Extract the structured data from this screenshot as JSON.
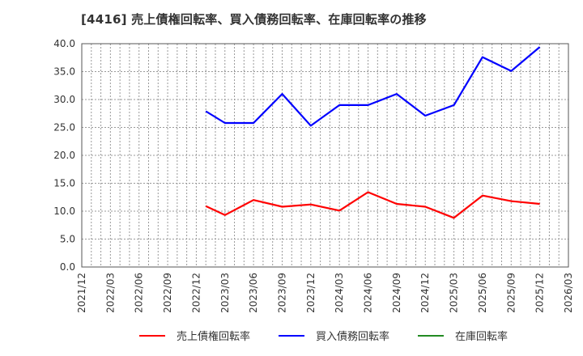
{
  "title": "[4416]  売上債権回転率、買入債務回転率、在庫回転率の推移",
  "chart_data": {
    "type": "line",
    "title": "[4416]  売上債権回転率、買入債務回転率、在庫回転率の推移",
    "xlabel": "",
    "ylabel": "",
    "ylim": [
      0,
      40
    ],
    "yticks": [
      "0.0",
      "5.0",
      "10.0",
      "15.0",
      "20.0",
      "25.0",
      "30.0",
      "35.0",
      "40.0"
    ],
    "xticks": [
      "2021/12",
      "2022/03",
      "2022/06",
      "2022/09",
      "2022/12",
      "2023/03",
      "2023/06",
      "2023/09",
      "2023/12",
      "2024/03",
      "2024/06",
      "2024/09",
      "2024/12",
      "2025/03",
      "2025/06",
      "2025/09",
      "2025/12",
      "2026/03"
    ],
    "grid": true,
    "legend_position": "bottom",
    "x": [
      "2023/01",
      "2023/03",
      "2023/06",
      "2023/09",
      "2023/12",
      "2024/03",
      "2024/06",
      "2024/09",
      "2024/12",
      "2025/03",
      "2025/06",
      "2025/09",
      "2025/12"
    ],
    "x_month_offsets": [
      13,
      15,
      18,
      21,
      24,
      27,
      30,
      33,
      36,
      39,
      42,
      45,
      48
    ],
    "series": [
      {
        "name": "売上債権回転率",
        "color": "#ff0000",
        "values": [
          10.9,
          9.3,
          12.0,
          10.8,
          11.2,
          10.1,
          13.4,
          11.3,
          10.8,
          8.8,
          12.8,
          11.8,
          11.3
        ]
      },
      {
        "name": "買入債務回転率",
        "color": "#0000ff",
        "values": [
          27.9,
          25.8,
          25.8,
          31.0,
          25.3,
          29.0,
          29.0,
          31.0,
          27.1,
          29.0,
          37.6,
          35.1,
          39.4
        ]
      },
      {
        "name": "在庫回転率",
        "color": "#228b22",
        "values": []
      }
    ]
  },
  "legend": [
    {
      "label": "売上債権回転率",
      "color": "#ff0000"
    },
    {
      "label": "買入債務回転率",
      "color": "#0000ff"
    },
    {
      "label": "在庫回転率",
      "color": "#228b22"
    }
  ]
}
